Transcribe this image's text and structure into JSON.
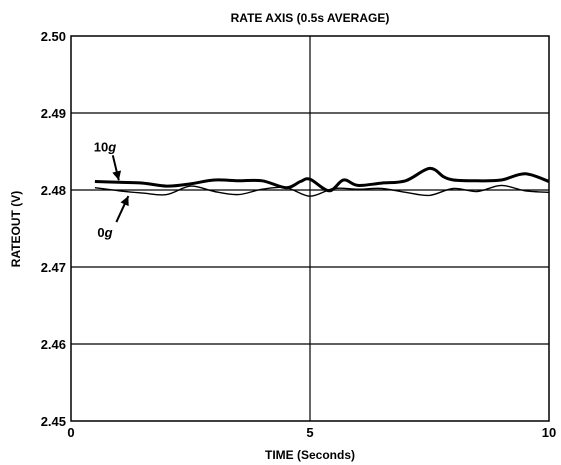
{
  "chart_data": {
    "type": "line",
    "title": "RATE AXIS (0.5s AVERAGE)",
    "xlabel": "TIME (Seconds)",
    "ylabel": "RATEOUT (V)",
    "xlim": [
      0,
      10
    ],
    "ylim": [
      2.45,
      2.5
    ],
    "x_ticks": [
      0,
      5,
      10
    ],
    "x_tick_labels": [
      "0",
      "5",
      "10"
    ],
    "y_ticks": [
      2.45,
      2.46,
      2.47,
      2.48,
      2.49,
      2.5
    ],
    "y_tick_labels": [
      "2.45",
      "2.46",
      "2.47",
      "2.48",
      "2.49",
      "2.50"
    ],
    "grid": true,
    "annotations": [
      {
        "num": "10",
        "unit": "g",
        "series": 0,
        "x": 1.0,
        "y": 2.481
      },
      {
        "num": "0",
        "unit": "g",
        "series": 1,
        "x": 1.2,
        "y": 2.4796
      }
    ],
    "series": [
      {
        "color": "#000000",
        "x": [
          0.5,
          1.0,
          1.5,
          2.0,
          2.5,
          3.0,
          3.5,
          4.0,
          4.5,
          4.8,
          5.0,
          5.4,
          5.7,
          6.0,
          6.5,
          7.0,
          7.5,
          7.8,
          8.0,
          8.5,
          9.0,
          9.5,
          10.0
        ],
        "y": [
          2.4811,
          2.481,
          2.4809,
          2.4805,
          2.4808,
          2.4813,
          2.4812,
          2.4812,
          2.4803,
          2.4811,
          2.4814,
          2.4799,
          2.4813,
          2.4806,
          2.4809,
          2.4812,
          2.4828,
          2.4817,
          2.4813,
          2.4812,
          2.4813,
          2.4821,
          2.4811
        ]
      },
      {
        "color": "#000000",
        "x": [
          0.5,
          1.0,
          1.5,
          2.0,
          2.5,
          3.0,
          3.5,
          4.0,
          4.5,
          5.0,
          5.5,
          6.0,
          6.5,
          7.0,
          7.5,
          8.0,
          8.5,
          9.0,
          9.5,
          10.0
        ],
        "y": [
          2.4803,
          2.4799,
          2.4796,
          2.4794,
          2.4805,
          2.4798,
          2.4794,
          2.4801,
          2.4803,
          2.4792,
          2.4802,
          2.4801,
          2.4802,
          2.4797,
          2.4793,
          2.4802,
          2.4798,
          2.4806,
          2.4799,
          2.4797
        ]
      }
    ]
  }
}
